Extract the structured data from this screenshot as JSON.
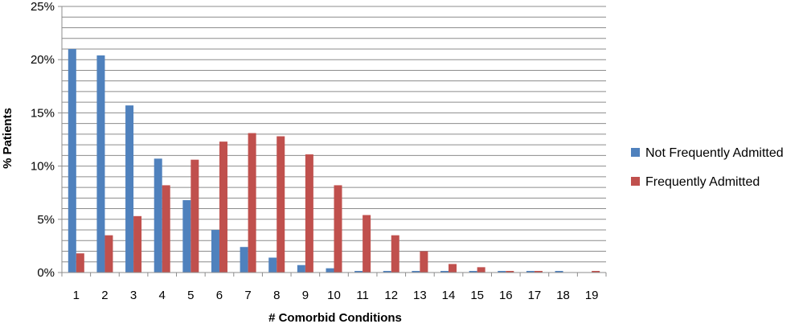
{
  "chart_data": {
    "type": "bar",
    "title": "",
    "xlabel": "# Comorbid Conditions",
    "ylabel": "% Patients",
    "ylim": [
      0,
      25
    ],
    "y_ticks": [
      "0%",
      "5%",
      "10%",
      "15%",
      "20%",
      "25%"
    ],
    "grid": true,
    "legend_position": "right",
    "categories": [
      "1",
      "2",
      "3",
      "4",
      "5",
      "6",
      "7",
      "8",
      "9",
      "10",
      "11",
      "12",
      "13",
      "14",
      "15",
      "16",
      "17",
      "18",
      "19"
    ],
    "series": [
      {
        "name": "Not Frequently Admitted",
        "color": "#4F81BD",
        "values": [
          21.0,
          20.4,
          15.7,
          10.7,
          6.8,
          4.0,
          2.4,
          1.4,
          0.7,
          0.4,
          0.15,
          0.15,
          0.15,
          0.15,
          0.15,
          0.15,
          0.15,
          0.15,
          0.0
        ]
      },
      {
        "name": "Frequently Admitted",
        "color": "#C0504D",
        "values": [
          1.8,
          3.5,
          5.3,
          8.2,
          10.6,
          12.3,
          13.1,
          12.8,
          11.1,
          8.2,
          5.4,
          3.5,
          2.0,
          0.8,
          0.5,
          0.15,
          0.15,
          0.0,
          0.15
        ]
      }
    ]
  }
}
